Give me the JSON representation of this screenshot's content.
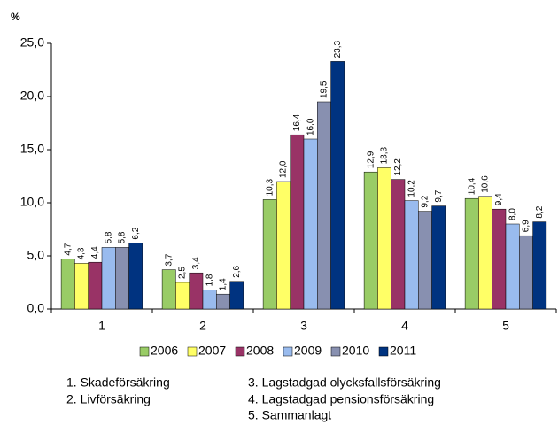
{
  "chart_data": {
    "type": "bar",
    "y_label": "%",
    "categories": [
      "1",
      "2",
      "3",
      "4",
      "5"
    ],
    "series": [
      {
        "name": "2006",
        "color": "#99cc66",
        "values": [
          4.7,
          3.7,
          10.3,
          12.9,
          10.4
        ],
        "value_labels": [
          "4,7",
          "3,7",
          "10,3",
          "12,9",
          "10,4"
        ]
      },
      {
        "name": "2007",
        "color": "#ffff66",
        "values": [
          4.3,
          2.5,
          12.0,
          13.3,
          10.6
        ],
        "value_labels": [
          "4,3",
          "2,5",
          "12,0",
          "13,3",
          "10,6"
        ]
      },
      {
        "name": "2008",
        "color": "#993366",
        "values": [
          4.4,
          3.4,
          16.4,
          12.2,
          9.4
        ],
        "value_labels": [
          "4,4",
          "3,4",
          "16,4",
          "12,2",
          "9,4"
        ]
      },
      {
        "name": "2009",
        "color": "#99bbee",
        "values": [
          5.8,
          1.8,
          16.0,
          10.2,
          8.0
        ],
        "value_labels": [
          "5,8",
          "1,8",
          "16,0",
          "10,2",
          "8,0"
        ]
      },
      {
        "name": "2010",
        "color": "#8890b0",
        "values": [
          5.8,
          1.4,
          19.5,
          9.2,
          6.9
        ],
        "value_labels": [
          "5,8",
          "1,4",
          "19,5",
          "9,2",
          "6,9"
        ]
      },
      {
        "name": "2011",
        "color": "#003380",
        "values": [
          6.2,
          2.6,
          23.3,
          9.7,
          8.2
        ],
        "value_labels": [
          "6,2",
          "2,6",
          "23,3",
          "9,7",
          "8,2"
        ]
      }
    ],
    "ylim": [
      0,
      25
    ],
    "yticks": [
      {
        "value": 0,
        "label": "0,0"
      },
      {
        "value": 5,
        "label": "5,0"
      },
      {
        "value": 10,
        "label": "10,0"
      },
      {
        "value": 15,
        "label": "15,0"
      },
      {
        "value": 20,
        "label": "20,0"
      },
      {
        "value": 25,
        "label": "25,0"
      }
    ],
    "grid": false,
    "legend": "bottom",
    "notes": [
      "1. Skadeförsäkring",
      "2. Livförsäkring",
      "3. Lagstadgad olycksfallsförsäkring",
      "4. Lagstadgad pensionsförsäkring",
      "5. Sammanlagt"
    ]
  }
}
